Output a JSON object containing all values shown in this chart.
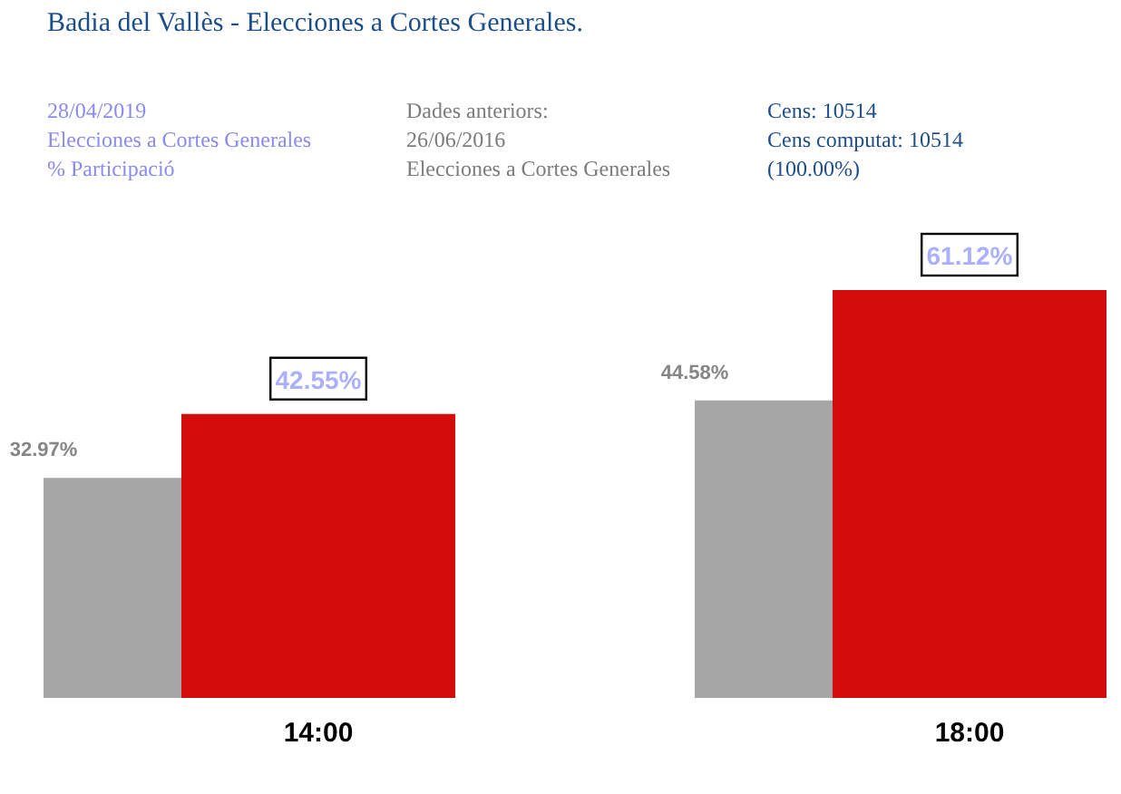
{
  "chart_data": {
    "type": "bar",
    "title": "Badia del Vallès - Elecciones a Cortes Generales.",
    "annotations": [
      "28/04/2019",
      "Elecciones a Cortes Generales",
      "% Participació",
      "Dades anteriors:",
      "26/06/2016",
      "Elecciones a Cortes Generales",
      "Cens: 10514",
      "Cens computat: 10514",
      "(100.00%)"
    ],
    "categories": [
      "14:00",
      "18:00"
    ],
    "series": [
      {
        "color": "#a6a6a6",
        "values": [
          32.97,
          44.58
        ],
        "value_labels": [
          "32.97%",
          "44.58%"
        ]
      },
      {
        "color": "#d40c0c",
        "values": [
          42.55,
          61.12
        ],
        "value_labels": [
          "42.55%",
          "61.12%"
        ]
      }
    ]
  }
}
